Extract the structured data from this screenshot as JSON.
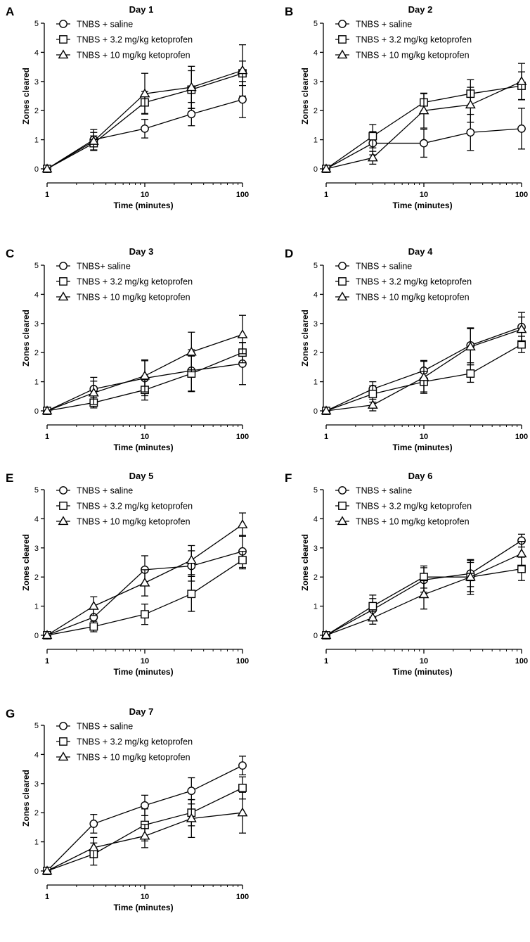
{
  "figure": {
    "marker_names": [
      "circle",
      "square",
      "triangle"
    ]
  },
  "chart_data": [
    {
      "type": "line",
      "panel_label": "A",
      "title": "Day 1",
      "xlabel": "Time (minutes)",
      "ylabel": "Zones cleared",
      "x_scale": "log",
      "xlim": [
        1,
        100
      ],
      "ylim": [
        0,
        5
      ],
      "x_ticks": [
        1,
        10,
        100
      ],
      "y_ticks": [
        0,
        1,
        2,
        3,
        4,
        5
      ],
      "x": [
        1,
        3,
        10,
        30,
        100
      ],
      "series": [
        {
          "name": "TNBS + saline",
          "marker": "circle",
          "values": [
            0,
            1.0,
            1.38,
            1.88,
            2.38
          ],
          "errors": [
            0,
            0.35,
            0.32,
            0.4,
            0.62
          ]
        },
        {
          "name": "TNBS + 3.2 mg/kg ketoprofen",
          "marker": "square",
          "values": [
            0,
            0.88,
            2.28,
            2.72,
            3.28
          ],
          "errors": [
            0,
            0.25,
            0.38,
            0.65,
            0.42
          ]
        },
        {
          "name": "TNBS + 10 mg/kg ketoprofen",
          "marker": "triangle",
          "values": [
            0,
            0.95,
            2.58,
            2.8,
            3.38
          ],
          "errors": [
            0,
            0.3,
            0.7,
            0.72,
            0.88
          ]
        }
      ]
    },
    {
      "type": "line",
      "panel_label": "B",
      "title": "Day 2",
      "xlabel": "Time (minutes)",
      "ylabel": "Zones cleared",
      "x_scale": "log",
      "xlim": [
        1,
        100
      ],
      "ylim": [
        0,
        5
      ],
      "x_ticks": [
        1,
        10,
        100
      ],
      "y_ticks": [
        0,
        1,
        2,
        3,
        4,
        5
      ],
      "x": [
        1,
        3,
        10,
        30,
        100
      ],
      "series": [
        {
          "name": "TNBS + saline",
          "marker": "circle",
          "values": [
            0,
            0.88,
            0.88,
            1.25,
            1.38
          ],
          "errors": [
            0,
            0.4,
            0.48,
            0.62,
            0.7
          ]
        },
        {
          "name": "TNBS + 3.2 mg/kg ketoprofen",
          "marker": "square",
          "values": [
            0,
            1.12,
            2.28,
            2.58,
            2.85
          ],
          "errors": [
            0,
            0.4,
            0.3,
            0.48,
            0.48
          ]
        },
        {
          "name": "TNBS + 10 mg/kg ketoprofen",
          "marker": "triangle",
          "values": [
            0,
            0.38,
            2.0,
            2.2,
            3.0
          ],
          "errors": [
            0,
            0.22,
            0.6,
            0.6,
            0.62
          ]
        }
      ]
    },
    {
      "type": "line",
      "panel_label": "C",
      "title": "Day 3",
      "xlabel": "Time (minutes)",
      "ylabel": "Zones cleared",
      "x_scale": "log",
      "xlim": [
        1,
        100
      ],
      "ylim": [
        0,
        5
      ],
      "x_ticks": [
        1,
        10,
        100
      ],
      "y_ticks": [
        0,
        1,
        2,
        3,
        4,
        5
      ],
      "x": [
        1,
        3,
        10,
        30,
        100
      ],
      "series": [
        {
          "name": "TNBS+ saline",
          "marker": "circle",
          "values": [
            0,
            0.75,
            1.12,
            1.38,
            1.62
          ],
          "errors": [
            0,
            0.4,
            0.6,
            0.72,
            0.72
          ]
        },
        {
          "name": "TNBS + 3.2 mg/kg ketoprofen",
          "marker": "square",
          "values": [
            0,
            0.28,
            0.72,
            1.28,
            2.0
          ],
          "errors": [
            0,
            0.18,
            0.35,
            0.6,
            0.35
          ]
        },
        {
          "name": "TNBS + 10 mg/kg ketoprofen",
          "marker": "triangle",
          "values": [
            0,
            0.62,
            1.2,
            2.02,
            2.62
          ],
          "errors": [
            0,
            0.4,
            0.55,
            0.68,
            0.66
          ]
        }
      ]
    },
    {
      "type": "line",
      "panel_label": "D",
      "title": "Day 4",
      "xlabel": "Time (minutes)",
      "ylabel": "Zones cleared",
      "x_scale": "log",
      "xlim": [
        1,
        100
      ],
      "ylim": [
        0,
        5
      ],
      "x_ticks": [
        1,
        10,
        100
      ],
      "y_ticks": [
        0,
        1,
        2,
        3,
        4,
        5
      ],
      "x": [
        1,
        3,
        10,
        30,
        100
      ],
      "series": [
        {
          "name": "TNBS + saline",
          "marker": "circle",
          "values": [
            0,
            0.75,
            1.38,
            2.25,
            2.88
          ],
          "errors": [
            0,
            0.25,
            0.35,
            0.6,
            0.5
          ]
        },
        {
          "name": "TNBS + 3.2 mg/kg ketoprofen",
          "marker": "square",
          "values": [
            0,
            0.58,
            1.0,
            1.28,
            2.28
          ],
          "errors": [
            0,
            0.28,
            0.35,
            0.3,
            0.28
          ]
        },
        {
          "name": "TNBS + 10 mg/kg ketoprofen",
          "marker": "triangle",
          "values": [
            0,
            0.2,
            1.15,
            2.2,
            2.8
          ],
          "errors": [
            0,
            0.2,
            0.55,
            0.62,
            0.42
          ]
        }
      ]
    },
    {
      "type": "line",
      "panel_label": "E",
      "title": "Day 5",
      "xlabel": "Time (minutes)",
      "ylabel": "Zones cleared",
      "x_scale": "log",
      "xlim": [
        1,
        100
      ],
      "ylim": [
        0,
        5
      ],
      "x_ticks": [
        1,
        10,
        100
      ],
      "y_ticks": [
        0,
        1,
        2,
        3,
        4,
        5
      ],
      "x": [
        1,
        3,
        10,
        30,
        100
      ],
      "series": [
        {
          "name": "TNBS + saline",
          "marker": "circle",
          "values": [
            0,
            0.62,
            2.25,
            2.38,
            2.88
          ],
          "errors": [
            0,
            0.35,
            0.48,
            0.52,
            0.55
          ]
        },
        {
          "name": "TNBS + 3.2 mg/kg ketoprofen",
          "marker": "square",
          "values": [
            0,
            0.3,
            0.72,
            1.42,
            2.58
          ],
          "errors": [
            0,
            0.18,
            0.35,
            0.6,
            0.3
          ]
        },
        {
          "name": "TNBS + 10 mg/kg ketoprofen",
          "marker": "triangle",
          "values": [
            0,
            1.0,
            1.8,
            2.58,
            3.8
          ],
          "errors": [
            0,
            0.32,
            0.45,
            0.5,
            0.4
          ]
        }
      ]
    },
    {
      "type": "line",
      "panel_label": "F",
      "title": "Day 6",
      "xlabel": "Time (minutes)",
      "ylabel": "Zones cleared",
      "x_scale": "log",
      "xlim": [
        1,
        100
      ],
      "ylim": [
        0,
        5
      ],
      "x_ticks": [
        1,
        10,
        100
      ],
      "y_ticks": [
        0,
        1,
        2,
        3,
        4,
        5
      ],
      "x": [
        1,
        3,
        10,
        30,
        100
      ],
      "series": [
        {
          "name": "TNBS + saline",
          "marker": "circle",
          "values": [
            0,
            0.88,
            1.9,
            2.12,
            3.25
          ],
          "errors": [
            0,
            0.38,
            0.42,
            0.45,
            0.22
          ]
        },
        {
          "name": "TNBS + 3.2 mg/kg ketoprofen",
          "marker": "square",
          "values": [
            0,
            1.0,
            2.0,
            2.0,
            2.28
          ],
          "errors": [
            0,
            0.38,
            0.38,
            0.5,
            0.4
          ]
        },
        {
          "name": "TNBS + 10 mg/kg ketoprofen",
          "marker": "triangle",
          "values": [
            0,
            0.6,
            1.4,
            2.0,
            2.8
          ],
          "errors": [
            0,
            0.22,
            0.5,
            0.6,
            0.42
          ]
        }
      ]
    },
    {
      "type": "line",
      "panel_label": "G",
      "title": "Day 7",
      "xlabel": "Time (minutes)",
      "ylabel": "Zones cleared",
      "x_scale": "log",
      "xlim": [
        1,
        100
      ],
      "ylim": [
        0,
        5
      ],
      "x_ticks": [
        1,
        10,
        100
      ],
      "y_ticks": [
        0,
        1,
        2,
        3,
        4,
        5
      ],
      "x": [
        1,
        3,
        10,
        30,
        100
      ],
      "series": [
        {
          "name": "TNBS + saline",
          "marker": "circle",
          "values": [
            0,
            1.62,
            2.25,
            2.75,
            3.62
          ],
          "errors": [
            0,
            0.32,
            0.35,
            0.45,
            0.32
          ]
        },
        {
          "name": "TNBS + 3.2 mg/kg ketoprofen",
          "marker": "square",
          "values": [
            0,
            0.58,
            1.58,
            2.0,
            2.85
          ],
          "errors": [
            0,
            0.38,
            0.55,
            0.45,
            0.38
          ]
        },
        {
          "name": "TNBS + 10 mg/kg ketoprofen",
          "marker": "triangle",
          "values": [
            0,
            0.8,
            1.2,
            1.8,
            2.0
          ],
          "errors": [
            0,
            0.35,
            0.4,
            0.65,
            0.7
          ]
        }
      ]
    }
  ]
}
